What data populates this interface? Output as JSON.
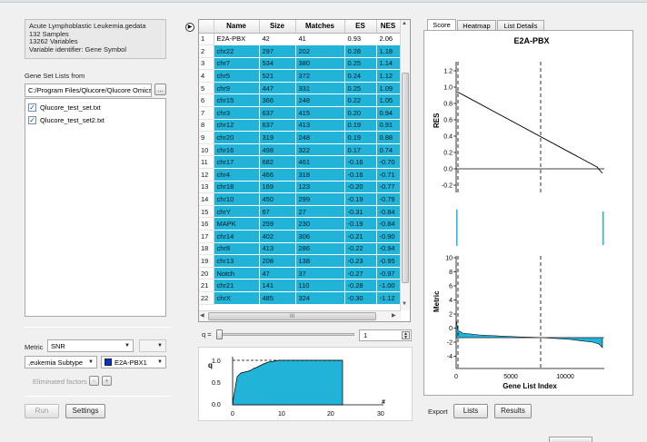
{
  "dataset": {
    "file": "Acute Lymphoblastic Leukemia.gedata",
    "samples": "132 Samples",
    "variables": "13262 Variables",
    "identifier": "Variable identifier: Gene Symbol"
  },
  "gene_sets": {
    "label": "Gene Set Lists from",
    "path": "C:/Program Files/Qlucore/Qlucore Omics",
    "browse_label": "...",
    "files": [
      {
        "name": "Qlucore_test_set.txt",
        "checked": true
      },
      {
        "name": "Qlucore_test_set2.txt",
        "checked": true
      }
    ]
  },
  "controls": {
    "metric_label": "Metric",
    "metric_value": "SNR",
    "factor_value": ",eukemia Subtype",
    "class_value": "E2A-PBX1",
    "class_color": "#0033cc",
    "eliminated_label": "Eliminated factors",
    "minus_label": "-",
    "plus_label": "+",
    "run_label": "Run",
    "settings_label": "Settings"
  },
  "table": {
    "columns": [
      "Name",
      "Size",
      "Matches",
      "ES",
      "NES"
    ],
    "rows": [
      [
        "1",
        "E2A-PBX",
        "42",
        "41",
        "0.93",
        "2.06"
      ],
      [
        "2",
        "chr22",
        "297",
        "202",
        "0.28",
        "1.18"
      ],
      [
        "3",
        "chr7",
        "534",
        "380",
        "0.25",
        "1.14"
      ],
      [
        "4",
        "chr5",
        "521",
        "372",
        "0.24",
        "1.12"
      ],
      [
        "5",
        "chr9",
        "447",
        "331",
        "0.25",
        "1.09"
      ],
      [
        "6",
        "chr15",
        "366",
        "248",
        "0.22",
        "1.05"
      ],
      [
        "7",
        "chr3",
        "637",
        "415",
        "0.20",
        "0.94"
      ],
      [
        "8",
        "chr12",
        "637",
        "413",
        "0.19",
        "0.91"
      ],
      [
        "9",
        "chr20",
        "319",
        "248",
        "0.19",
        "0.88"
      ],
      [
        "10",
        "chr16",
        "498",
        "322",
        "0.17",
        "0.74"
      ],
      [
        "11",
        "chr17",
        "682",
        "461",
        "-0.16",
        "-0.70"
      ],
      [
        "12",
        "chr4",
        "466",
        "318",
        "-0.16",
        "-0.71"
      ],
      [
        "13",
        "chr18",
        "169",
        "123",
        "-0.20",
        "-0.77"
      ],
      [
        "14",
        "chr10",
        "450",
        "299",
        "-0.19",
        "-0.79"
      ],
      [
        "15",
        "chrY",
        "67",
        "27",
        "-0.31",
        "-0.84"
      ],
      [
        "16",
        "MAPK",
        "259",
        "230",
        "-0.19",
        "-0.84"
      ],
      [
        "17",
        "chr14",
        "402",
        "306",
        "-0.21",
        "-0.90"
      ],
      [
        "18",
        "chr8",
        "413",
        "286",
        "-0.22",
        "-0.94"
      ],
      [
        "19",
        "chr13",
        "208",
        "138",
        "-0.23",
        "-0.95"
      ],
      [
        "20",
        "Notch",
        "47",
        "37",
        "-0.27",
        "-0.97"
      ],
      [
        "21",
        "chr21",
        "141",
        "110",
        "-0.28",
        "-1.00"
      ],
      [
        "22",
        "chrX",
        "485",
        "324",
        "-0.30",
        "-1.12"
      ]
    ],
    "cell_color": "#22b3d8",
    "hscroll_label": "III"
  },
  "qslider": {
    "label": "q =",
    "value": "1"
  },
  "qplot": {
    "y_label": "q",
    "x_label": "#",
    "x_ticks": [
      "0",
      "10",
      "20",
      "30"
    ],
    "y_ticks": [
      "1.0",
      "0.5",
      "0.0"
    ]
  },
  "tabs": [
    "Score",
    "Heatmap",
    "List Details"
  ],
  "plot": {
    "title": "E2A-PBX",
    "res_label": "RES",
    "res_ticks": [
      "1.2",
      "1.0",
      "0.8",
      "0.6",
      "0.4",
      "0.2",
      "0.0",
      "-0.2"
    ],
    "metric_label": "Metric",
    "metric_ticks": [
      "10",
      "8",
      "6",
      "4",
      "2",
      "0",
      "-2",
      "-4"
    ],
    "x_ticks": [
      "0",
      "5000",
      "10000"
    ],
    "x_label": "Gene List Index",
    "accent": "#22b3d8"
  },
  "export": {
    "label": "Export",
    "lists_label": "Lists",
    "results_label": "Results"
  }
}
